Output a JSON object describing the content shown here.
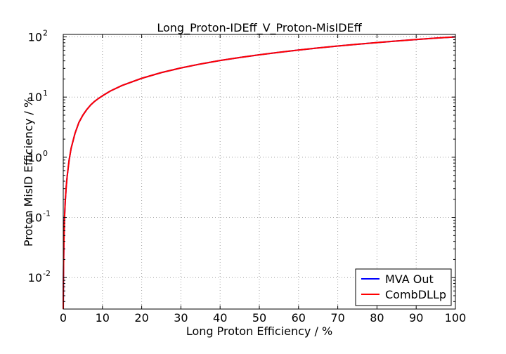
{
  "chart_data": {
    "type": "line",
    "title": "Long_Proton-IDEff_V_Proton-MisIDEff",
    "xlabel": "Long Proton Efficiency / %",
    "ylabel": "Proton MisID Efficiency / %",
    "x_scale": "linear",
    "y_scale": "log",
    "xlim": [
      0,
      100
    ],
    "ylim": [
      0.003,
      110
    ],
    "x_ticks": [
      0,
      10,
      20,
      30,
      40,
      50,
      60,
      70,
      80,
      90,
      100
    ],
    "y_ticks": [
      {
        "value": 0.01,
        "base": "10",
        "exp": "-2"
      },
      {
        "value": 0.1,
        "base": "10",
        "exp": "-1"
      },
      {
        "value": 1,
        "base": "10",
        "exp": "0"
      },
      {
        "value": 10,
        "base": "10",
        "exp": "1"
      },
      {
        "value": 100,
        "base": "10",
        "exp": "2"
      }
    ],
    "grid": true,
    "legend_position": "bottom-right",
    "series": [
      {
        "name": "MVA Out",
        "color": "#0000ff",
        "x": [
          0,
          0.05,
          0.1,
          0.2,
          0.3,
          0.5,
          0.75,
          1,
          1.5,
          2,
          3,
          4,
          5,
          6,
          7,
          8,
          9,
          10,
          12,
          15,
          20,
          25,
          30,
          35,
          40,
          45,
          50,
          55,
          60,
          65,
          70,
          75,
          80,
          85,
          90,
          95,
          100
        ],
        "y": [
          0.003,
          0.01,
          0.02,
          0.05,
          0.09,
          0.18,
          0.32,
          0.48,
          0.9,
          1.4,
          2.5,
          3.8,
          5.0,
          6.2,
          7.4,
          8.5,
          9.5,
          10.5,
          12.6,
          15.6,
          20.5,
          25.5,
          30.5,
          35.5,
          40.5,
          45.5,
          50.5,
          55.5,
          60.5,
          65.5,
          70.5,
          75.5,
          80.5,
          85.5,
          90.5,
          95.5,
          100
        ]
      },
      {
        "name": "CombDLLp",
        "color": "#ff0000",
        "x": [
          0,
          0.05,
          0.1,
          0.2,
          0.3,
          0.5,
          0.75,
          1,
          1.5,
          2,
          3,
          4,
          5,
          6,
          7,
          8,
          9,
          10,
          12,
          15,
          20,
          25,
          30,
          35,
          40,
          45,
          50,
          55,
          60,
          65,
          70,
          75,
          80,
          85,
          90,
          95,
          100
        ],
        "y": [
          0.003,
          0.01,
          0.02,
          0.05,
          0.09,
          0.18,
          0.32,
          0.48,
          0.9,
          1.4,
          2.5,
          3.8,
          5.0,
          6.2,
          7.4,
          8.5,
          9.5,
          10.5,
          12.6,
          15.6,
          20.5,
          25.5,
          30.5,
          35.5,
          40.5,
          45.5,
          50.5,
          55.5,
          60.5,
          65.5,
          70.5,
          75.5,
          80.5,
          85.5,
          90.5,
          95.5,
          100
        ]
      }
    ]
  }
}
